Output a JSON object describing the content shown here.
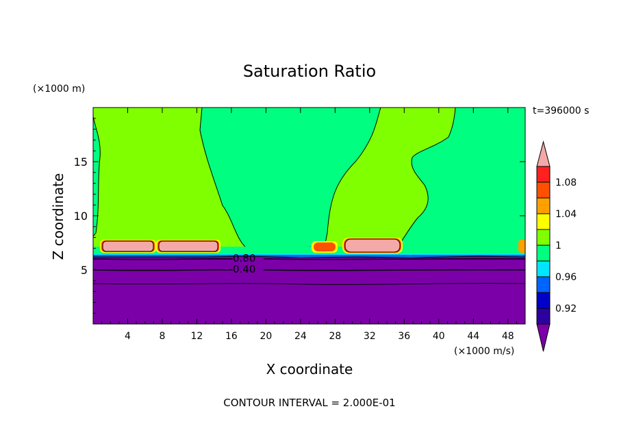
{
  "chart_data": {
    "type": "heatmap",
    "title": "Saturation Ratio",
    "xlabel": "X coordinate",
    "ylabel": "Z coordinate",
    "x_unit": "(×1000 m/s)",
    "y_unit": "(×1000 m)",
    "time_label": "t=396000 s",
    "footer": "CONTOUR INTERVAL = 2.000E-01",
    "xlim": [
      0,
      50
    ],
    "ylim": [
      0,
      20
    ],
    "x_ticks": [
      4,
      8,
      12,
      16,
      20,
      24,
      28,
      32,
      36,
      40,
      44,
      48
    ],
    "y_ticks": [
      5,
      10,
      15
    ],
    "contour_labels": [
      {
        "text": "0.80",
        "x": 18,
        "y": 6.2
      },
      {
        "text": "0.40",
        "x": 18,
        "y": 5.0
      }
    ],
    "colorbar": {
      "levels": [
        0.9,
        0.92,
        0.94,
        0.96,
        0.98,
        1.0,
        1.02,
        1.04,
        1.06,
        1.08,
        1.1
      ],
      "tick_labels": [
        "0.92",
        "0.96",
        "1",
        "1.04",
        "1.08"
      ],
      "colors": [
        "#7b00a8",
        "#2d00a0",
        "#0000c8",
        "#0064ff",
        "#00e6ff",
        "#00ff80",
        "#80ff00",
        "#ffff00",
        "#ffa000",
        "#ff5000",
        "#ff2020",
        "#f5a8a8"
      ]
    },
    "regions": {
      "dry_layer_top_z": 6.4,
      "moist_band_x": [
        [
          0,
          50
        ]
      ],
      "saturated_patches_x": [
        [
          1.5,
          14.5
        ],
        [
          25.5,
          35.5
        ],
        [
          49.5,
          50
        ]
      ]
    }
  }
}
